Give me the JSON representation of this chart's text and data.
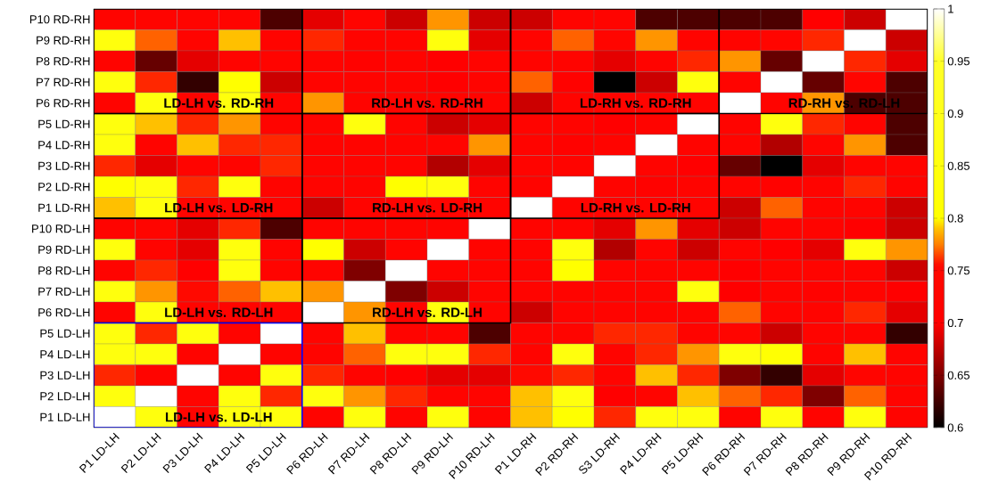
{
  "chart_data": {
    "type": "heatmap",
    "categories": [
      "P1 LD-LH",
      "P2 LD-LH",
      "P3 LD-LH",
      "P4 LD-LH",
      "P5 LD-LH",
      "P6 RD-LH",
      "P7 RD-LH",
      "P8 RD-LH",
      "P9 RD-LH",
      "P10 RD-LH",
      "P1 LD-RH",
      "P2 RD-RH",
      "S3 LD-RH",
      "P4 LD-RH",
      "P5 LD-RH",
      "P6 RD-RH",
      "P7 RD-RH",
      "P8 RD-RH",
      "P9 RD-RH",
      "P10 RD-RH"
    ],
    "y_categories": [
      "P10 RD-RH",
      "P9 RD-RH",
      "P8 RD-RH",
      "P7 RD-RH",
      "P6 RD-RH",
      "P5 LD-RH",
      "P4 LD-RH",
      "P3 LD-RH",
      "P2 LD-RH",
      "P1 LD-RH",
      "P10 RD-LH",
      "P9 RD-LH",
      "P8 RD-LH",
      "P7 RD-LH",
      "P6 RD-LH",
      "P5 LD-LH",
      "P4 LD-LH",
      "P3 LD-LH",
      "P2 LD-LH",
      "P1 LD-LH"
    ],
    "cells": [
      [
        0.72,
        0.72,
        0.72,
        0.72,
        0.63,
        0.69,
        0.72,
        0.68,
        0.78,
        0.68,
        0.68,
        0.72,
        0.72,
        0.63,
        0.63,
        0.63,
        0.63,
        0.7,
        0.68,
        1
      ],
      [
        0.85,
        0.77,
        0.72,
        0.79,
        0.72,
        0.76,
        0.72,
        0.72,
        0.85,
        0.69,
        0.72,
        0.77,
        0.73,
        0.78,
        0.72,
        0.72,
        0.73,
        0.76,
        1,
        0.68
      ],
      [
        0.72,
        0.64,
        0.69,
        0.72,
        0.72,
        0.72,
        0.71,
        0.72,
        0.7,
        0.72,
        0.72,
        0.72,
        0.69,
        0.72,
        0.76,
        0.78,
        0.64,
        1,
        0.76,
        0.69
      ],
      [
        0.85,
        0.76,
        0.62,
        0.8,
        0.68,
        0.72,
        0.72,
        0.72,
        0.7,
        0.72,
        0.77,
        0.71,
        0.6,
        0.68,
        0.85,
        0.72,
        1,
        0.64,
        0.73,
        0.63
      ],
      [
        0.72,
        0.85,
        0.72,
        0.85,
        0.72,
        0.78,
        0.72,
        0.72,
        0.72,
        0.72,
        0.68,
        0.72,
        0.72,
        0.72,
        0.72,
        1,
        0.72,
        0.78,
        0.63,
        0.63
      ],
      [
        0.85,
        0.79,
        0.76,
        0.78,
        0.72,
        0.72,
        0.85,
        0.72,
        0.68,
        0.69,
        0.72,
        0.72,
        0.7,
        0.72,
        1,
        0.72,
        0.85,
        0.76,
        0.72,
        0.63
      ],
      [
        0.85,
        0.72,
        0.79,
        0.76,
        0.76,
        0.72,
        0.72,
        0.72,
        0.72,
        0.78,
        0.72,
        0.71,
        0.72,
        1,
        0.72,
        0.72,
        0.67,
        0.73,
        0.78,
        0.63
      ],
      [
        0.76,
        0.69,
        0.72,
        0.72,
        0.76,
        0.72,
        0.72,
        0.72,
        0.67,
        0.69,
        0.72,
        0.72,
        1,
        0.72,
        0.7,
        0.64,
        0.6,
        0.69,
        0.72,
        0.72
      ],
      [
        0.8,
        0.85,
        0.76,
        0.85,
        0.72,
        0.72,
        0.72,
        0.8,
        0.85,
        0.72,
        0.72,
        1,
        0.72,
        0.71,
        0.72,
        0.72,
        0.71,
        0.72,
        0.76,
        0.72
      ],
      [
        0.79,
        0.85,
        0.72,
        0.72,
        0.72,
        0.68,
        0.72,
        0.72,
        0.72,
        0.72,
        1,
        0.72,
        0.72,
        0.72,
        0.72,
        0.68,
        0.77,
        0.72,
        0.72,
        0.68
      ],
      [
        0.72,
        0.73,
        0.69,
        0.76,
        0.63,
        0.72,
        0.72,
        0.73,
        0.72,
        1,
        0.72,
        0.72,
        0.69,
        0.78,
        0.69,
        0.68,
        0.72,
        0.72,
        0.7,
        0.68
      ],
      [
        0.85,
        0.72,
        0.69,
        0.85,
        0.72,
        0.8,
        0.68,
        0.72,
        1,
        0.72,
        0.72,
        0.85,
        0.67,
        0.72,
        0.68,
        0.72,
        0.7,
        0.69,
        0.85,
        0.78
      ],
      [
        0.72,
        0.76,
        0.7,
        0.85,
        0.72,
        0.72,
        0.65,
        1,
        0.72,
        0.72,
        0.72,
        0.8,
        0.72,
        0.72,
        0.72,
        0.7,
        0.72,
        0.72,
        0.72,
        0.68
      ],
      [
        0.85,
        0.78,
        0.75,
        0.77,
        0.79,
        0.78,
        1,
        0.65,
        0.68,
        0.72,
        0.72,
        0.72,
        0.72,
        0.73,
        0.85,
        0.7,
        0.72,
        0.71,
        0.72,
        0.7
      ],
      [
        0.72,
        0.85,
        0.72,
        0.72,
        0.72,
        1,
        0.78,
        0.72,
        0.85,
        0.72,
        0.68,
        0.72,
        0.72,
        0.72,
        0.72,
        0.77,
        0.72,
        0.72,
        0.76,
        0.69
      ],
      [
        0.85,
        0.76,
        0.85,
        0.72,
        1,
        0.72,
        0.79,
        0.72,
        0.72,
        0.63,
        0.72,
        0.73,
        0.76,
        0.76,
        0.72,
        0.73,
        0.68,
        0.72,
        0.72,
        0.62
      ],
      [
        0.85,
        0.85,
        0.72,
        1,
        0.72,
        0.72,
        0.77,
        0.85,
        0.85,
        0.76,
        0.72,
        0.85,
        0.72,
        0.76,
        0.78,
        0.85,
        0.81,
        0.72,
        0.79,
        0.72
      ],
      [
        0.76,
        0.72,
        1,
        0.72,
        0.85,
        0.76,
        0.72,
        0.7,
        0.69,
        0.69,
        0.75,
        0.76,
        0.72,
        0.79,
        0.76,
        0.65,
        0.62,
        0.69,
        0.73,
        0.72
      ],
      [
        0.85,
        1,
        0.72,
        0.85,
        0.76,
        0.85,
        0.78,
        0.76,
        0.72,
        0.72,
        0.79,
        0.85,
        0.7,
        0.73,
        0.79,
        0.77,
        0.76,
        0.65,
        0.77,
        0.72
      ],
      [
        1,
        0.85,
        0.72,
        0.85,
        0.85,
        0.72,
        0.85,
        0.72,
        0.85,
        0.72,
        0.79,
        0.8,
        0.76,
        0.85,
        0.85,
        0.72,
        0.85,
        0.72,
        0.85,
        0.72
      ]
    ],
    "clim": [
      0.6,
      1
    ],
    "cticks": [
      0.6,
      0.65,
      0.7,
      0.75,
      0.8,
      0.85,
      0.9,
      0.95,
      1
    ],
    "annotations": [
      "LD-LH vs. RD-RH",
      "RD-LH vs. RD-RH",
      "LD-RH vs. RD-RH",
      "RD-RH vs. RD-LH",
      "LD-LH vs. LD-RH",
      "RD-LH vs. LD-RH",
      "LD-RH vs. LD-RH",
      "LD-LH vs. RD-LH",
      "RD-LH vs. RD-LH",
      "LD-LH vs. LD-LH"
    ]
  }
}
